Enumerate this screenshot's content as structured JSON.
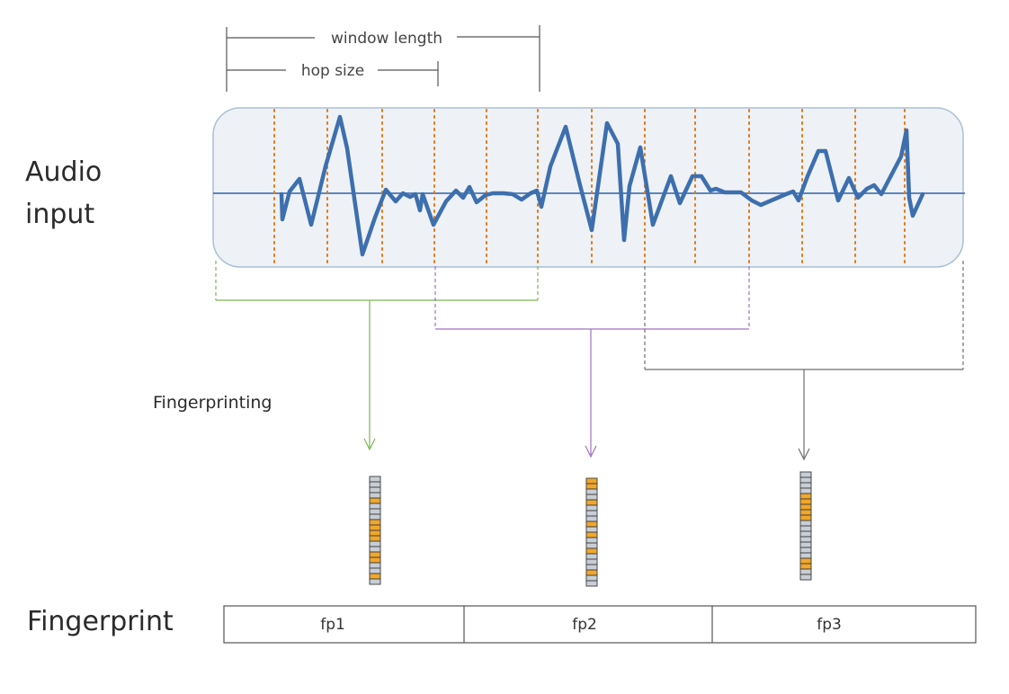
{
  "labels": {
    "window_length": "window length",
    "hop_size": "hop size",
    "audio_input_line1": "Audio",
    "audio_input_line2": "input",
    "fingerprinting": "Fingerprinting",
    "fingerprint": "Fingerprint"
  },
  "fingerprint_row": [
    "fp1",
    "fp2",
    "fp3"
  ],
  "colors": {
    "waveform": "#3d6fae",
    "frame_marker": "#e07a1a",
    "panel_fill": "#eef1f5",
    "panel_stroke": "#aac0d8",
    "group1": "#7cb554",
    "group2": "#a070c4",
    "group3": "#6e6e6e",
    "bit_on": "#f0a72a",
    "bit_off": "#c8ced6"
  },
  "fingerprint_vectors": [
    [
      0,
      0,
      0,
      0,
      1,
      0,
      0,
      0,
      1,
      1,
      1,
      1,
      0,
      0,
      1,
      1,
      0,
      0,
      1,
      0
    ],
    [
      1,
      1,
      0,
      0,
      1,
      0,
      0,
      0,
      1,
      0,
      1,
      0,
      0,
      1,
      0,
      0,
      0,
      1,
      0,
      0
    ],
    [
      0,
      0,
      0,
      0,
      1,
      1,
      1,
      1,
      1,
      0,
      0,
      0,
      0,
      0,
      0,
      0,
      1,
      1,
      0,
      0
    ]
  ]
}
